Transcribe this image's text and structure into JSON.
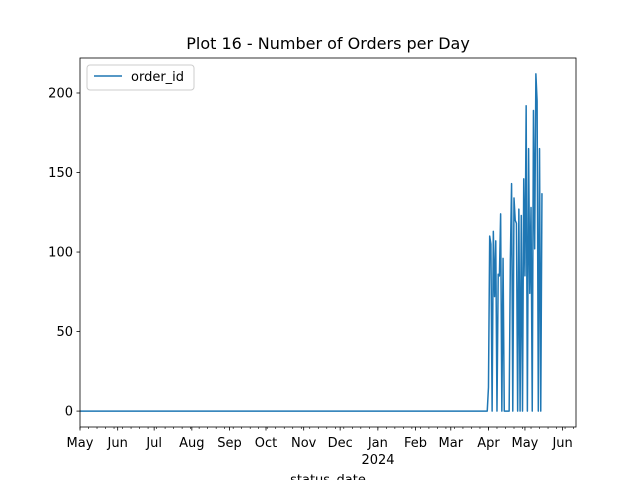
{
  "chart_data": {
    "type": "line",
    "title": "Plot 16 - Number of Orders per Day",
    "xlabel": "status_date",
    "ylabel": "",
    "xlim": [
      "2023-05-01",
      "2024-06-12"
    ],
    "ylim": [
      -10,
      222
    ],
    "yticks": [
      0,
      50,
      100,
      150,
      200
    ],
    "ytick_labels": [
      "0",
      "50",
      "100",
      "150",
      "200"
    ],
    "xticks": [
      {
        "date": "2023-05-01",
        "label": "May"
      },
      {
        "date": "2023-06-01",
        "label": "Jun"
      },
      {
        "date": "2023-07-01",
        "label": "Jul"
      },
      {
        "date": "2023-08-01",
        "label": "Aug"
      },
      {
        "date": "2023-09-01",
        "label": "Sep"
      },
      {
        "date": "2023-10-01",
        "label": "Oct"
      },
      {
        "date": "2023-11-01",
        "label": "Nov"
      },
      {
        "date": "2023-12-01",
        "label": "Dec"
      },
      {
        "date": "2024-01-01",
        "label": "Jan"
      },
      {
        "date": "2024-02-01",
        "label": "Feb"
      },
      {
        "date": "2024-03-01",
        "label": "Mar"
      },
      {
        "date": "2024-04-01",
        "label": "Apr"
      },
      {
        "date": "2024-05-01",
        "label": "May"
      },
      {
        "date": "2024-06-01",
        "label": "Jun"
      }
    ],
    "year_label": "2024",
    "legend": {
      "position": "upper-left",
      "entries": [
        "order_id"
      ]
    },
    "grid": false,
    "series": [
      {
        "name": "order_id",
        "color": "#1f77b4",
        "points": [
          [
            "2023-05-01",
            0
          ],
          [
            "2024-03-31",
            0
          ],
          [
            "2024-04-01",
            15
          ],
          [
            "2024-04-02",
            110
          ],
          [
            "2024-04-03",
            105
          ],
          [
            "2024-04-04",
            0
          ],
          [
            "2024-04-05",
            113
          ],
          [
            "2024-04-06",
            72
          ],
          [
            "2024-04-07",
            107
          ],
          [
            "2024-04-08",
            0
          ],
          [
            "2024-04-09",
            86
          ],
          [
            "2024-04-10",
            85
          ],
          [
            "2024-04-11",
            124
          ],
          [
            "2024-04-12",
            0
          ],
          [
            "2024-04-13",
            96
          ],
          [
            "2024-04-14",
            0
          ],
          [
            "2024-04-15",
            0
          ],
          [
            "2024-04-16",
            0
          ],
          [
            "2024-04-17",
            0
          ],
          [
            "2024-04-18",
            0
          ],
          [
            "2024-04-19",
            95
          ],
          [
            "2024-04-20",
            143
          ],
          [
            "2024-04-21",
            0
          ],
          [
            "2024-04-22",
            134
          ],
          [
            "2024-04-23",
            120
          ],
          [
            "2024-04-24",
            118
          ],
          [
            "2024-04-25",
            0
          ],
          [
            "2024-04-26",
            127
          ],
          [
            "2024-04-27",
            0
          ],
          [
            "2024-04-28",
            123
          ],
          [
            "2024-04-29",
            0
          ],
          [
            "2024-04-30",
            146
          ],
          [
            "2024-05-01",
            85
          ],
          [
            "2024-05-02",
            192
          ],
          [
            "2024-05-03",
            0
          ],
          [
            "2024-05-04",
            165
          ],
          [
            "2024-05-05",
            74
          ],
          [
            "2024-05-06",
            128
          ],
          [
            "2024-05-07",
            0
          ],
          [
            "2024-05-08",
            189
          ],
          [
            "2024-05-09",
            102
          ],
          [
            "2024-05-10",
            212
          ],
          [
            "2024-05-11",
            195
          ],
          [
            "2024-05-12",
            0
          ],
          [
            "2024-05-13",
            165
          ],
          [
            "2024-05-14",
            0
          ],
          [
            "2024-05-15",
            137
          ]
        ]
      }
    ]
  }
}
